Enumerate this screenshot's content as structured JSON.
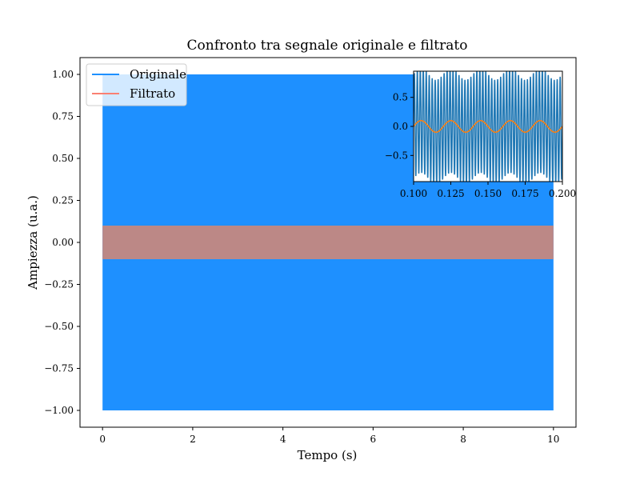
{
  "chart_data": {
    "type": "line",
    "title": "Confronto tra segnale originale e filtrato",
    "xlabel": "Tempo (s)",
    "ylabel": "Ampiezza (u.a.)",
    "xlim": [
      -0.5,
      10.5
    ],
    "ylim": [
      -1.1,
      1.1
    ],
    "xticks": [
      0,
      2,
      4,
      6,
      8,
      10
    ],
    "xtick_labels": [
      "0",
      "2",
      "4",
      "6",
      "8",
      "10"
    ],
    "yticks": [
      -1.0,
      -0.75,
      -0.5,
      -0.25,
      0.0,
      0.25,
      0.5,
      0.75,
      1.0
    ],
    "ytick_labels": [
      "−1.00",
      "−0.75",
      "−0.50",
      "−0.25",
      "0.00",
      "0.25",
      "0.50",
      "0.75",
      "1.00"
    ],
    "grid": false,
    "legend_position": "top-left",
    "series": [
      {
        "name": "Originale",
        "color": "#1e90ff",
        "x_range": [
          0,
          10
        ],
        "y_min": -1.0,
        "y_max": 1.0,
        "description_components": [
          {
            "frequency_hz": 50,
            "amplitude": 0.1
          },
          {
            "frequency_hz": 500,
            "amplitude": 0.9
          }
        ]
      },
      {
        "name": "Filtrato",
        "color": "#fa8072",
        "x_range": [
          0,
          10
        ],
        "y_min": -0.1,
        "y_max": 0.1,
        "frequency_hz": 50,
        "amplitude": 0.1
      }
    ],
    "inset": {
      "xlim": [
        0.1,
        0.2
      ],
      "ylim": [
        -0.95,
        0.95
      ],
      "xticks": [
        0.1,
        0.125,
        0.15,
        0.175,
        0.2
      ],
      "xtick_labels": [
        "0.100",
        "0.125",
        "0.150",
        "0.175",
        "0.200"
      ],
      "yticks": [
        -0.5,
        0.0,
        0.5
      ],
      "ytick_labels": [
        "−0.5",
        "0.0",
        "0.5"
      ],
      "line_colors": [
        "#1f77b4",
        "#ff7f0e"
      ]
    }
  }
}
